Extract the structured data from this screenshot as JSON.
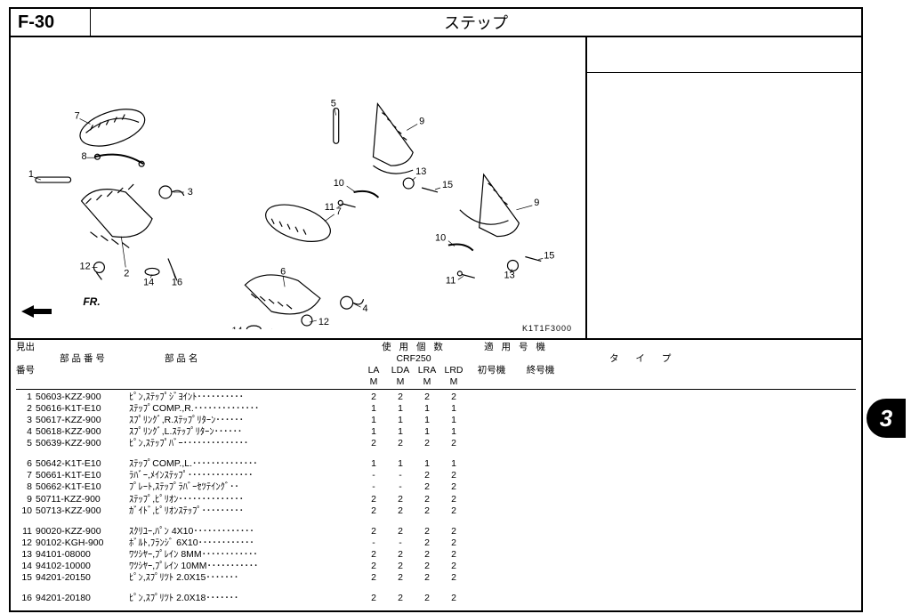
{
  "page_code": "F-30",
  "page_title": "ステップ",
  "diagram_code": "K1T1F3000",
  "fr_label": "FR.",
  "side_tab": "3",
  "headers": {
    "midashi": "見出",
    "part_no": "部 品 番 号",
    "part_name": "部  品  名",
    "qty_label": "使 用 個 数",
    "model_label": "CRF250",
    "apply_label": "適 用 号 機",
    "bango": "番号",
    "type_label": "タ  イ  プ",
    "start": "初号機",
    "end": "終号機",
    "variants": [
      "LA",
      "LDA",
      "LRA",
      "LRD"
    ],
    "variant_sub": [
      "M",
      "M",
      "M",
      "M"
    ]
  },
  "callouts": [
    1,
    2,
    3,
    4,
    5,
    6,
    7,
    8,
    9,
    10,
    11,
    12,
    13,
    14,
    15,
    16
  ],
  "rows": [
    {
      "ref": 1,
      "pn": "50603-KZZ-900",
      "desc": "ﾋﾟﾝ,ｽﾃｯﾌﾟｼﾞﾖｲﾝﾄ･･････････",
      "qty": [
        "2",
        "2",
        "2",
        "2"
      ]
    },
    {
      "ref": 2,
      "pn": "50616-K1T-E10",
      "desc": "ｽﾃｯﾌﾟCOMP.,R.･･････････････",
      "qty": [
        "1",
        "1",
        "1",
        "1"
      ]
    },
    {
      "ref": 3,
      "pn": "50617-KZZ-900",
      "desc": "ｽﾌﾟﾘﾝｸﾞ,R.ｽﾃｯﾌﾟﾘﾀｰﾝ･･････",
      "qty": [
        "1",
        "1",
        "1",
        "1"
      ]
    },
    {
      "ref": 4,
      "pn": "50618-KZZ-900",
      "desc": "ｽﾌﾟﾘﾝｸﾞ,L.ｽﾃｯﾌﾟﾘﾀｰﾝ･･････",
      "qty": [
        "1",
        "1",
        "1",
        "1"
      ]
    },
    {
      "ref": 5,
      "pn": "50639-KZZ-900",
      "desc": "ﾋﾟﾝ,ｽﾃｯﾌﾟﾊﾞｰ･･････････････",
      "qty": [
        "2",
        "2",
        "2",
        "2"
      ]
    },
    {
      "spacer": true
    },
    {
      "ref": 6,
      "pn": "50642-K1T-E10",
      "desc": "ｽﾃｯﾌﾟCOMP.,L.･･････････････",
      "qty": [
        "1",
        "1",
        "1",
        "1"
      ]
    },
    {
      "ref": 7,
      "pn": "50661-K1T-E10",
      "desc": "ﾗﾊﾞｰ,ﾒｲﾝｽﾃｯﾌﾟ･･････････････",
      "qty": [
        "-",
        "-",
        "2",
        "2"
      ]
    },
    {
      "ref": 8,
      "pn": "50662-K1T-E10",
      "desc": "ﾌﾟﾚｰﾄ,ｽﾃｯﾌﾟﾗﾊﾞｰｾﾂﾃｲﾝｸﾞ･･",
      "qty": [
        "-",
        "-",
        "2",
        "2"
      ]
    },
    {
      "ref": 9,
      "pn": "50711-KZZ-900",
      "desc": "ｽﾃｯﾌﾟ,ﾋﾟﾘｵﾝ･･････････････",
      "qty": [
        "2",
        "2",
        "2",
        "2"
      ]
    },
    {
      "ref": 10,
      "pn": "50713-KZZ-900",
      "desc": "ｶﾞｲﾄﾞ,ﾋﾟﾘｵﾝｽﾃｯﾌﾟ･････････",
      "qty": [
        "2",
        "2",
        "2",
        "2"
      ]
    },
    {
      "spacer": true
    },
    {
      "ref": 11,
      "pn": "90020-KZZ-900",
      "desc": "ｽｸﾘﾕｰ,ﾊﾟﾝ 4X10･････････････",
      "qty": [
        "2",
        "2",
        "2",
        "2"
      ]
    },
    {
      "ref": 12,
      "pn": "90102-KGH-900",
      "desc": "ﾎﾞﾙﾄ,ﾌﾗﾝｼﾞ 6X10････････････",
      "qty": [
        "-",
        "-",
        "2",
        "2"
      ]
    },
    {
      "ref": 13,
      "pn": "94101-08000",
      "desc": "ﾜﾂｼﾔｰ,ﾌﾟﾚｲﾝ 8MM････････････",
      "qty": [
        "2",
        "2",
        "2",
        "2"
      ]
    },
    {
      "ref": 14,
      "pn": "94102-10000",
      "desc": "ﾜﾂｼﾔｰ,ﾌﾟﾚｲﾝ 10MM･･･････････",
      "qty": [
        "2",
        "2",
        "2",
        "2"
      ]
    },
    {
      "ref": 15,
      "pn": "94201-20150",
      "desc": "ﾋﾟﾝ,ｽﾌﾟﾘﾂﾄ 2.0X15･･･････",
      "qty": [
        "2",
        "2",
        "2",
        "2"
      ]
    },
    {
      "spacer": true
    },
    {
      "ref": 16,
      "pn": "94201-20180",
      "desc": "ﾋﾟﾝ,ｽﾌﾟﾘﾂﾄ 2.0X18･･･････",
      "qty": [
        "2",
        "2",
        "2",
        "2"
      ]
    }
  ]
}
